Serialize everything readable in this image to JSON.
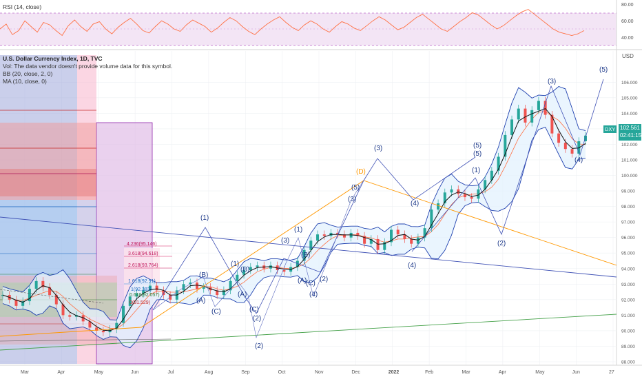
{
  "header": {
    "rsi_title": "RSI (14, close)",
    "legend_lines": [
      "U.S. Dollar Currency Index, 1D, TVC",
      "Vol: The data vendor doesn't provide volume data for this symbol.",
      "BB (20, close, 2, 0)",
      "MA (10, close, 0)"
    ]
  },
  "price_axis": {
    "unit": "USD",
    "symbol": "DXY",
    "last_price": "102.561",
    "countdown": "02:41:15"
  },
  "colors": {
    "candle_up": "#26a69a",
    "candle_down": "#ef5350",
    "bb_fill": "#e3f2fd",
    "bb_line": "#2962ff",
    "ma_line": "#000000",
    "rsi_line": "#ff7043",
    "rsi_band": "#e1bee7",
    "wave_line": "#2962ff",
    "trend_orange": "#ff9800",
    "trend_green": "#43a047"
  },
  "chart_data": [
    {
      "type": "line",
      "title": "RSI (14, close)",
      "ylim": [
        30,
        85
      ],
      "yticks": [
        "80.00",
        "60.00",
        "40.00"
      ],
      "band": [
        30,
        70
      ],
      "series": [
        {
          "values": [
            52,
            58,
            45,
            50,
            62,
            55,
            48,
            60,
            57,
            50,
            44,
            56,
            63,
            55,
            49,
            58,
            61,
            52,
            46,
            54,
            60,
            65,
            58,
            50,
            47,
            55,
            62,
            58,
            52,
            49,
            57,
            63,
            59,
            55,
            48,
            53,
            60,
            66,
            62,
            55,
            49,
            45,
            52,
            58,
            63,
            67,
            60,
            54,
            50,
            57,
            62,
            58,
            52,
            48,
            55,
            61,
            58,
            53,
            50,
            56,
            62,
            67,
            63,
            57,
            51,
            54,
            60,
            66,
            70,
            64,
            58,
            52,
            49,
            55,
            61,
            66,
            72,
            69,
            63,
            57,
            52,
            56,
            62,
            68,
            73,
            76,
            70,
            64,
            58,
            52,
            48,
            46,
            44,
            46,
            50
          ]
        }
      ]
    },
    {
      "type": "line",
      "title": "U.S. Dollar Currency Index, 1D, TVC",
      "xlabel": "",
      "ylabel": "USD",
      "ylim": [
        88,
        106.5
      ],
      "yticks": [
        "106.000",
        "105.000",
        "104.000",
        "103.000",
        "102.000",
        "101.000",
        "100.000",
        "99.000",
        "98.000",
        "97.000",
        "96.000",
        "95.000",
        "94.000",
        "93.000",
        "92.000",
        "91.000",
        "90.000",
        "89.000",
        "88.000"
      ],
      "x_tick_labels": [
        "Mar",
        "Apr",
        "May",
        "Jun",
        "Jul",
        "Aug",
        "Sep",
        "Oct",
        "Nov",
        "Dec",
        "2022",
        "Feb",
        "Mar",
        "Apr",
        "May",
        "Jun",
        "27"
      ],
      "series": [
        {
          "name": "DXY",
          "values": [
            92.3,
            92.0,
            91.6,
            91.9,
            92.7,
            93.2,
            92.8,
            92.3,
            91.7,
            91.0,
            90.9,
            91.0,
            90.6,
            90.2,
            90.0,
            89.9,
            90.1,
            90.5,
            91.6,
            92.2,
            92.4,
            92.6,
            92.9,
            92.6,
            92.3,
            92.0,
            92.6,
            93.0,
            93.1,
            92.7,
            92.8,
            92.6,
            92.3,
            92.6,
            93.2,
            93.6,
            93.9,
            94.1,
            94.2,
            94.0,
            94.2,
            93.9,
            93.8,
            94.1,
            94.5,
            95.2,
            95.8,
            96.2,
            96.1,
            96.3,
            96.2,
            96.0,
            96.3,
            96.1,
            95.6,
            95.9,
            95.2,
            95.7,
            96.5,
            96.2,
            95.9,
            95.6,
            96.0,
            96.6,
            97.8,
            98.2,
            98.9,
            99.1,
            98.8,
            98.6,
            98.5,
            99.1,
            99.7,
            100.3,
            101.2,
            102.6,
            103.6,
            104.3,
            103.4,
            104.2,
            104.8,
            103.9,
            102.7,
            102.1,
            101.7,
            101.4,
            102.2,
            102.56
          ]
        }
      ],
      "annotations": [
        "(1)",
        "(A)",
        "(B)",
        "(C)",
        "(1)",
        "(A)",
        "(B)",
        "(C)",
        "(2)",
        "(2)",
        "(3)",
        "(1)",
        "(A)",
        "(B)",
        "(C)",
        "(2)",
        "(4)",
        "(5)",
        "(3)",
        "(D)",
        "(3)",
        "(4)",
        "(4)",
        "(1)",
        "(5)",
        "(5)",
        "(2)",
        "(3)",
        "(4)",
        "(5)"
      ],
      "fib_levels": [
        "4.236(95.146)",
        "3.618(94.618)",
        "2.618(93.764)",
        "1.618(92.91)",
        "1(92.383)",
        "0.618(92.057)",
        "0(91.529)"
      ]
    }
  ]
}
